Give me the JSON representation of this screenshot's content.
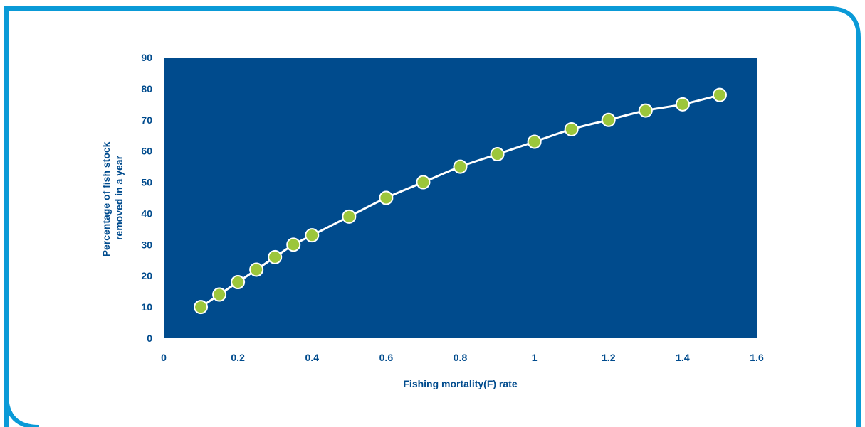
{
  "colors": {
    "frame": "#0a9ad7",
    "plot_bg": "#004b8d",
    "text": "#004b8d",
    "line": "#ffffff",
    "marker_fill": "#9cc63b",
    "marker_stroke": "#ffffff"
  },
  "chart_data": {
    "type": "line",
    "title": "",
    "xlabel": "Fishing mortality(F) rate",
    "ylabel_lines": [
      "Percentage of fish stock",
      "removed in a year"
    ],
    "xlim": [
      0,
      1.6
    ],
    "ylim": [
      0,
      90
    ],
    "x_ticks": [
      "0",
      "0.2",
      "0.4",
      "0.6",
      "0.8",
      "1",
      "1.2",
      "1.4",
      "1.6"
    ],
    "y_ticks": [
      "0",
      "10",
      "20",
      "30",
      "40",
      "50",
      "60",
      "70",
      "80",
      "90"
    ],
    "grid": false,
    "legend": "none",
    "series": [
      {
        "x": [
          0.1,
          0.15,
          0.2,
          0.25,
          0.3,
          0.35,
          0.4,
          0.5,
          0.6,
          0.7,
          0.8,
          0.9,
          1.0,
          1.1,
          1.2,
          1.3,
          1.4,
          1.5
        ],
        "y": [
          10,
          14,
          18,
          22,
          26,
          30,
          33,
          39,
          45,
          50,
          55,
          59,
          63,
          67,
          70,
          73,
          75,
          78
        ]
      }
    ]
  }
}
